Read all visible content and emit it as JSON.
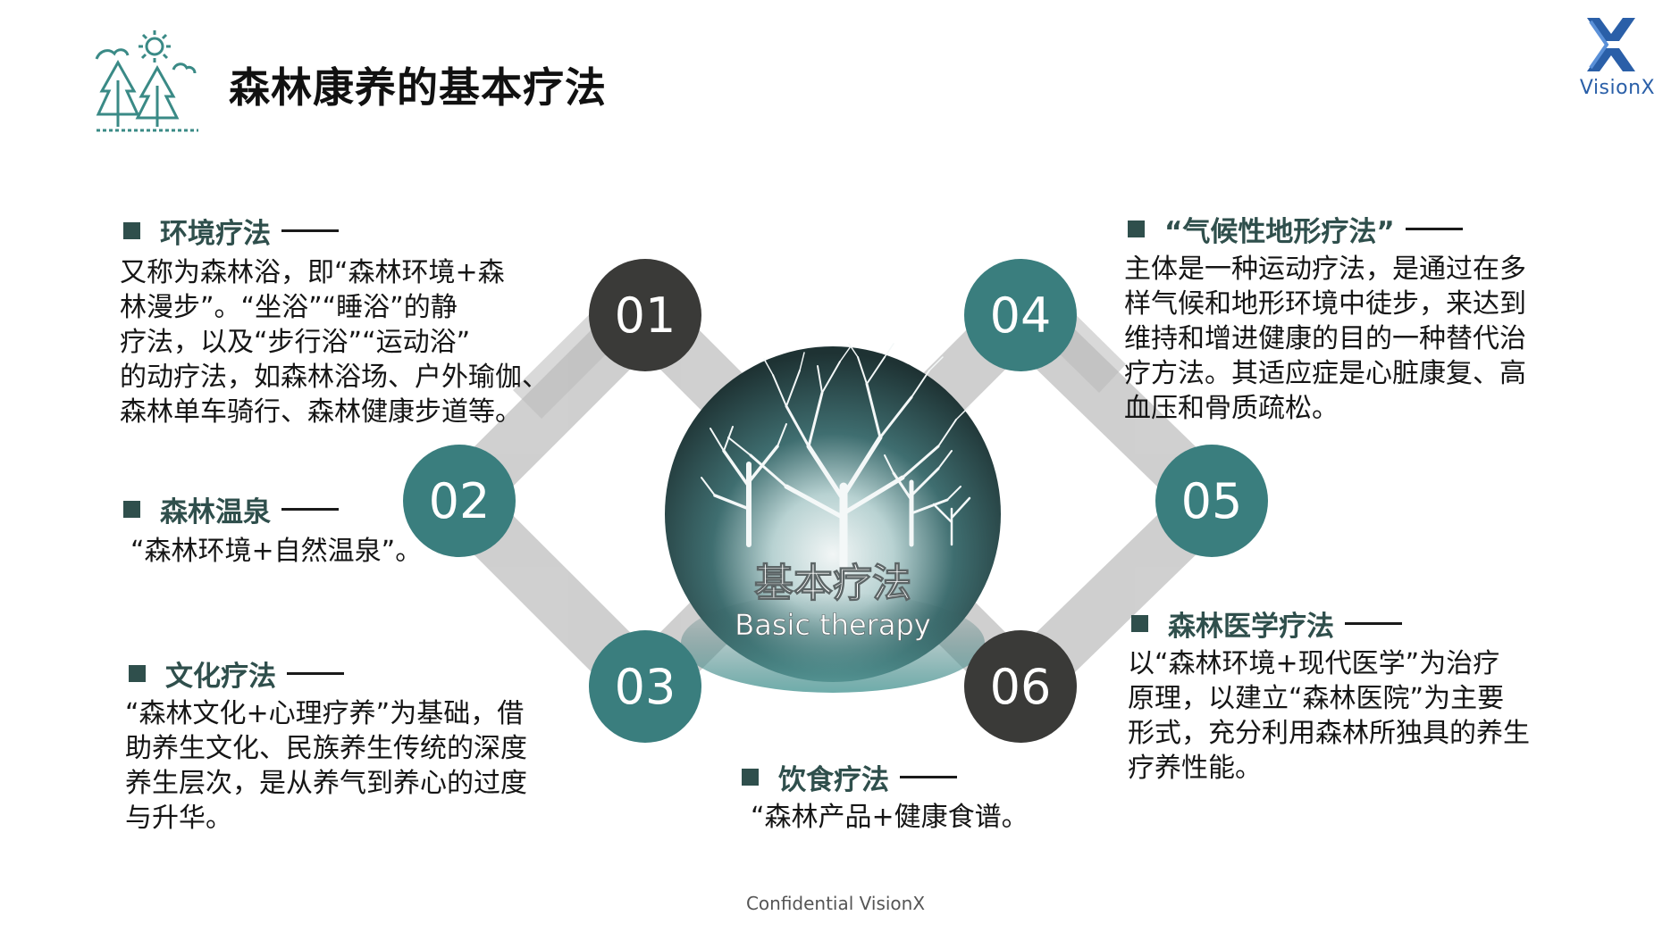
{
  "title": "森林康养的基本疗法",
  "logo": {
    "text": "VisionX",
    "icon": "visionx-x-logo-icon",
    "color": "#2a5fa8"
  },
  "header_icon": "forest-trees-sun-icon",
  "center": {
    "title": "基本疗法",
    "subtitle": "Basic therapy"
  },
  "nodes": [
    {
      "label": "01"
    },
    {
      "label": "02"
    },
    {
      "label": "03"
    },
    {
      "label": "04"
    },
    {
      "label": "05"
    },
    {
      "label": "06"
    }
  ],
  "sections": {
    "env": {
      "heading": "环境疗法",
      "lines": [
        "又称为森林浴，即“森林环境+森",
        "林漫步”。“坐浴”“睡浴”的静",
        "疗法，以及“步行浴”“运动浴”",
        "的动疗法，如森林浴场、户外瑜伽、",
        "森林单车骑行、森林健康步道等。"
      ]
    },
    "hotspring": {
      "heading": "森林温泉",
      "lines": [
        "“森林环境+自然温泉”。"
      ]
    },
    "culture": {
      "heading": "文化疗法",
      "lines": [
        "“森林文化+心理疗养”为基础，借",
        "助养生文化、民族养生传统的深度",
        "养生层次，是从养气到养心的过度",
        "与升华。"
      ]
    },
    "climate": {
      "heading": "“气候性地形疗法”",
      "lines": [
        "主体是一种运动疗法，是通过在多",
        "样气候和地形环境中徒步，来达到",
        "维持和增进健康的目的一种替代治",
        "疗方法。其适应症是心脏康复、高",
        "血压和骨质疏松。"
      ]
    },
    "medical": {
      "heading": "森林医学疗法",
      "lines": [
        "以“森林环境+现代医学”为治疗",
        "原理，以建立“森林医院”为主要",
        "形式，充分利用森林所独具的养生",
        "疗养性能。"
      ]
    },
    "diet": {
      "heading": "饮食疗法",
      "lines": [
        "“森林产品+健康食谱。"
      ]
    }
  },
  "footer": "Confidential VisionX",
  "colors": {
    "teal": "#3a7e7e",
    "dark": "#3a3a38",
    "band": "#cfcfcf",
    "heading": "#2f4f4c"
  }
}
